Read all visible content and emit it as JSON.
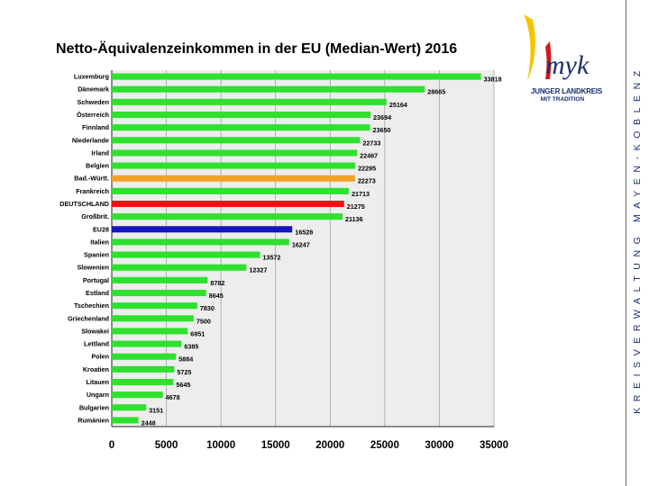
{
  "title": "Netto-Äquivalenzeinkommen in der EU (Median-Wert) 2016",
  "sidebar_text": "KREISVERWALTUNG MAYEN-KOBLENZ",
  "logo": {
    "mark_text": "myk",
    "line1": "JUNGER LANDKREIS",
    "line2": "MIT TRADITION"
  },
  "colors": {
    "default_bar": "#2fe02f",
    "highlight_orange": "#f2a22a",
    "highlight_red": "#ee1111",
    "highlight_blue": "#1515bf",
    "plot_bg": "#ededed"
  },
  "chart_data": {
    "type": "bar",
    "orientation": "horizontal",
    "title": "Netto-Äquivalenzeinkommen in der EU (Median-Wert) 2016",
    "xlim": [
      0,
      35000
    ],
    "xticks": [
      0,
      5000,
      10000,
      15000,
      20000,
      25000,
      30000,
      35000
    ],
    "grid": "vertical",
    "bars": [
      {
        "label": "Luxemburg",
        "value": 33818,
        "color": "green"
      },
      {
        "label": "Dänemark",
        "value": 28665,
        "color": "green"
      },
      {
        "label": "Schweden",
        "value": 25164,
        "color": "green"
      },
      {
        "label": "Österreich",
        "value": 23694,
        "color": "green"
      },
      {
        "label": "Finnland",
        "value": 23650,
        "color": "green"
      },
      {
        "label": "Niederlande",
        "value": 22733,
        "color": "green"
      },
      {
        "label": "Irland",
        "value": 22467,
        "color": "green"
      },
      {
        "label": "Belgien",
        "value": 22295,
        "color": "green"
      },
      {
        "label": "Bad.-Württ.",
        "value": 22273,
        "color": "orange"
      },
      {
        "label": "Frankreich",
        "value": 21713,
        "color": "green"
      },
      {
        "label": "DEUTSCHLAND",
        "value": 21275,
        "color": "red"
      },
      {
        "label": "Großbrit.",
        "value": 21136,
        "color": "green"
      },
      {
        "label": "EU28",
        "value": 16528,
        "color": "blue"
      },
      {
        "label": "Italien",
        "value": 16247,
        "color": "green"
      },
      {
        "label": "Spanien",
        "value": 13572,
        "color": "green"
      },
      {
        "label": "Slowenien",
        "value": 12327,
        "color": "green"
      },
      {
        "label": "Portugal",
        "value": 8782,
        "color": "green"
      },
      {
        "label": "Estland",
        "value": 8645,
        "color": "green"
      },
      {
        "label": "Tschechien",
        "value": 7830,
        "color": "green"
      },
      {
        "label": "Griechenland",
        "value": 7500,
        "color": "green"
      },
      {
        "label": "Slowakei",
        "value": 6951,
        "color": "green"
      },
      {
        "label": "Lettland",
        "value": 6385,
        "color": "green"
      },
      {
        "label": "Polen",
        "value": 5884,
        "color": "green"
      },
      {
        "label": "Kroatien",
        "value": 5725,
        "color": "green"
      },
      {
        "label": "Litauen",
        "value": 5645,
        "color": "green"
      },
      {
        "label": "Ungarn",
        "value": 4678,
        "color": "green"
      },
      {
        "label": "Bulgarien",
        "value": 3151,
        "color": "green"
      },
      {
        "label": "Rumänien",
        "value": 2448,
        "color": "green"
      }
    ]
  }
}
